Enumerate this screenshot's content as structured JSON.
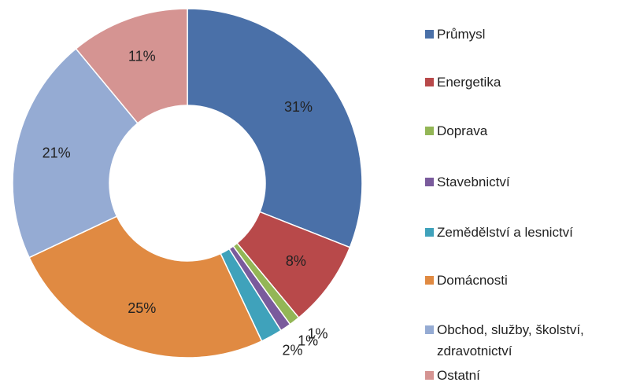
{
  "chart_data": {
    "type": "donut",
    "categories": [
      "Průmysl",
      "Energetika",
      "Doprava",
      "Stavebnictví",
      "Zemědělství a lesnictví",
      "Domácnosti",
      "Obchod, služby, školství, zdravotnictví",
      "Ostatní"
    ],
    "values": [
      31,
      8,
      1,
      1,
      2,
      25,
      21,
      11
    ],
    "value_labels": [
      "31%",
      "8%",
      "1%",
      "1%",
      "2%",
      "25%",
      "21%",
      "11%"
    ],
    "colors": [
      "#4a70a8",
      "#b8494a",
      "#93b656",
      "#7a5b9c",
      "#3fa2bb",
      "#e08a42",
      "#95abd3",
      "#d59492"
    ],
    "legend": "right"
  }
}
